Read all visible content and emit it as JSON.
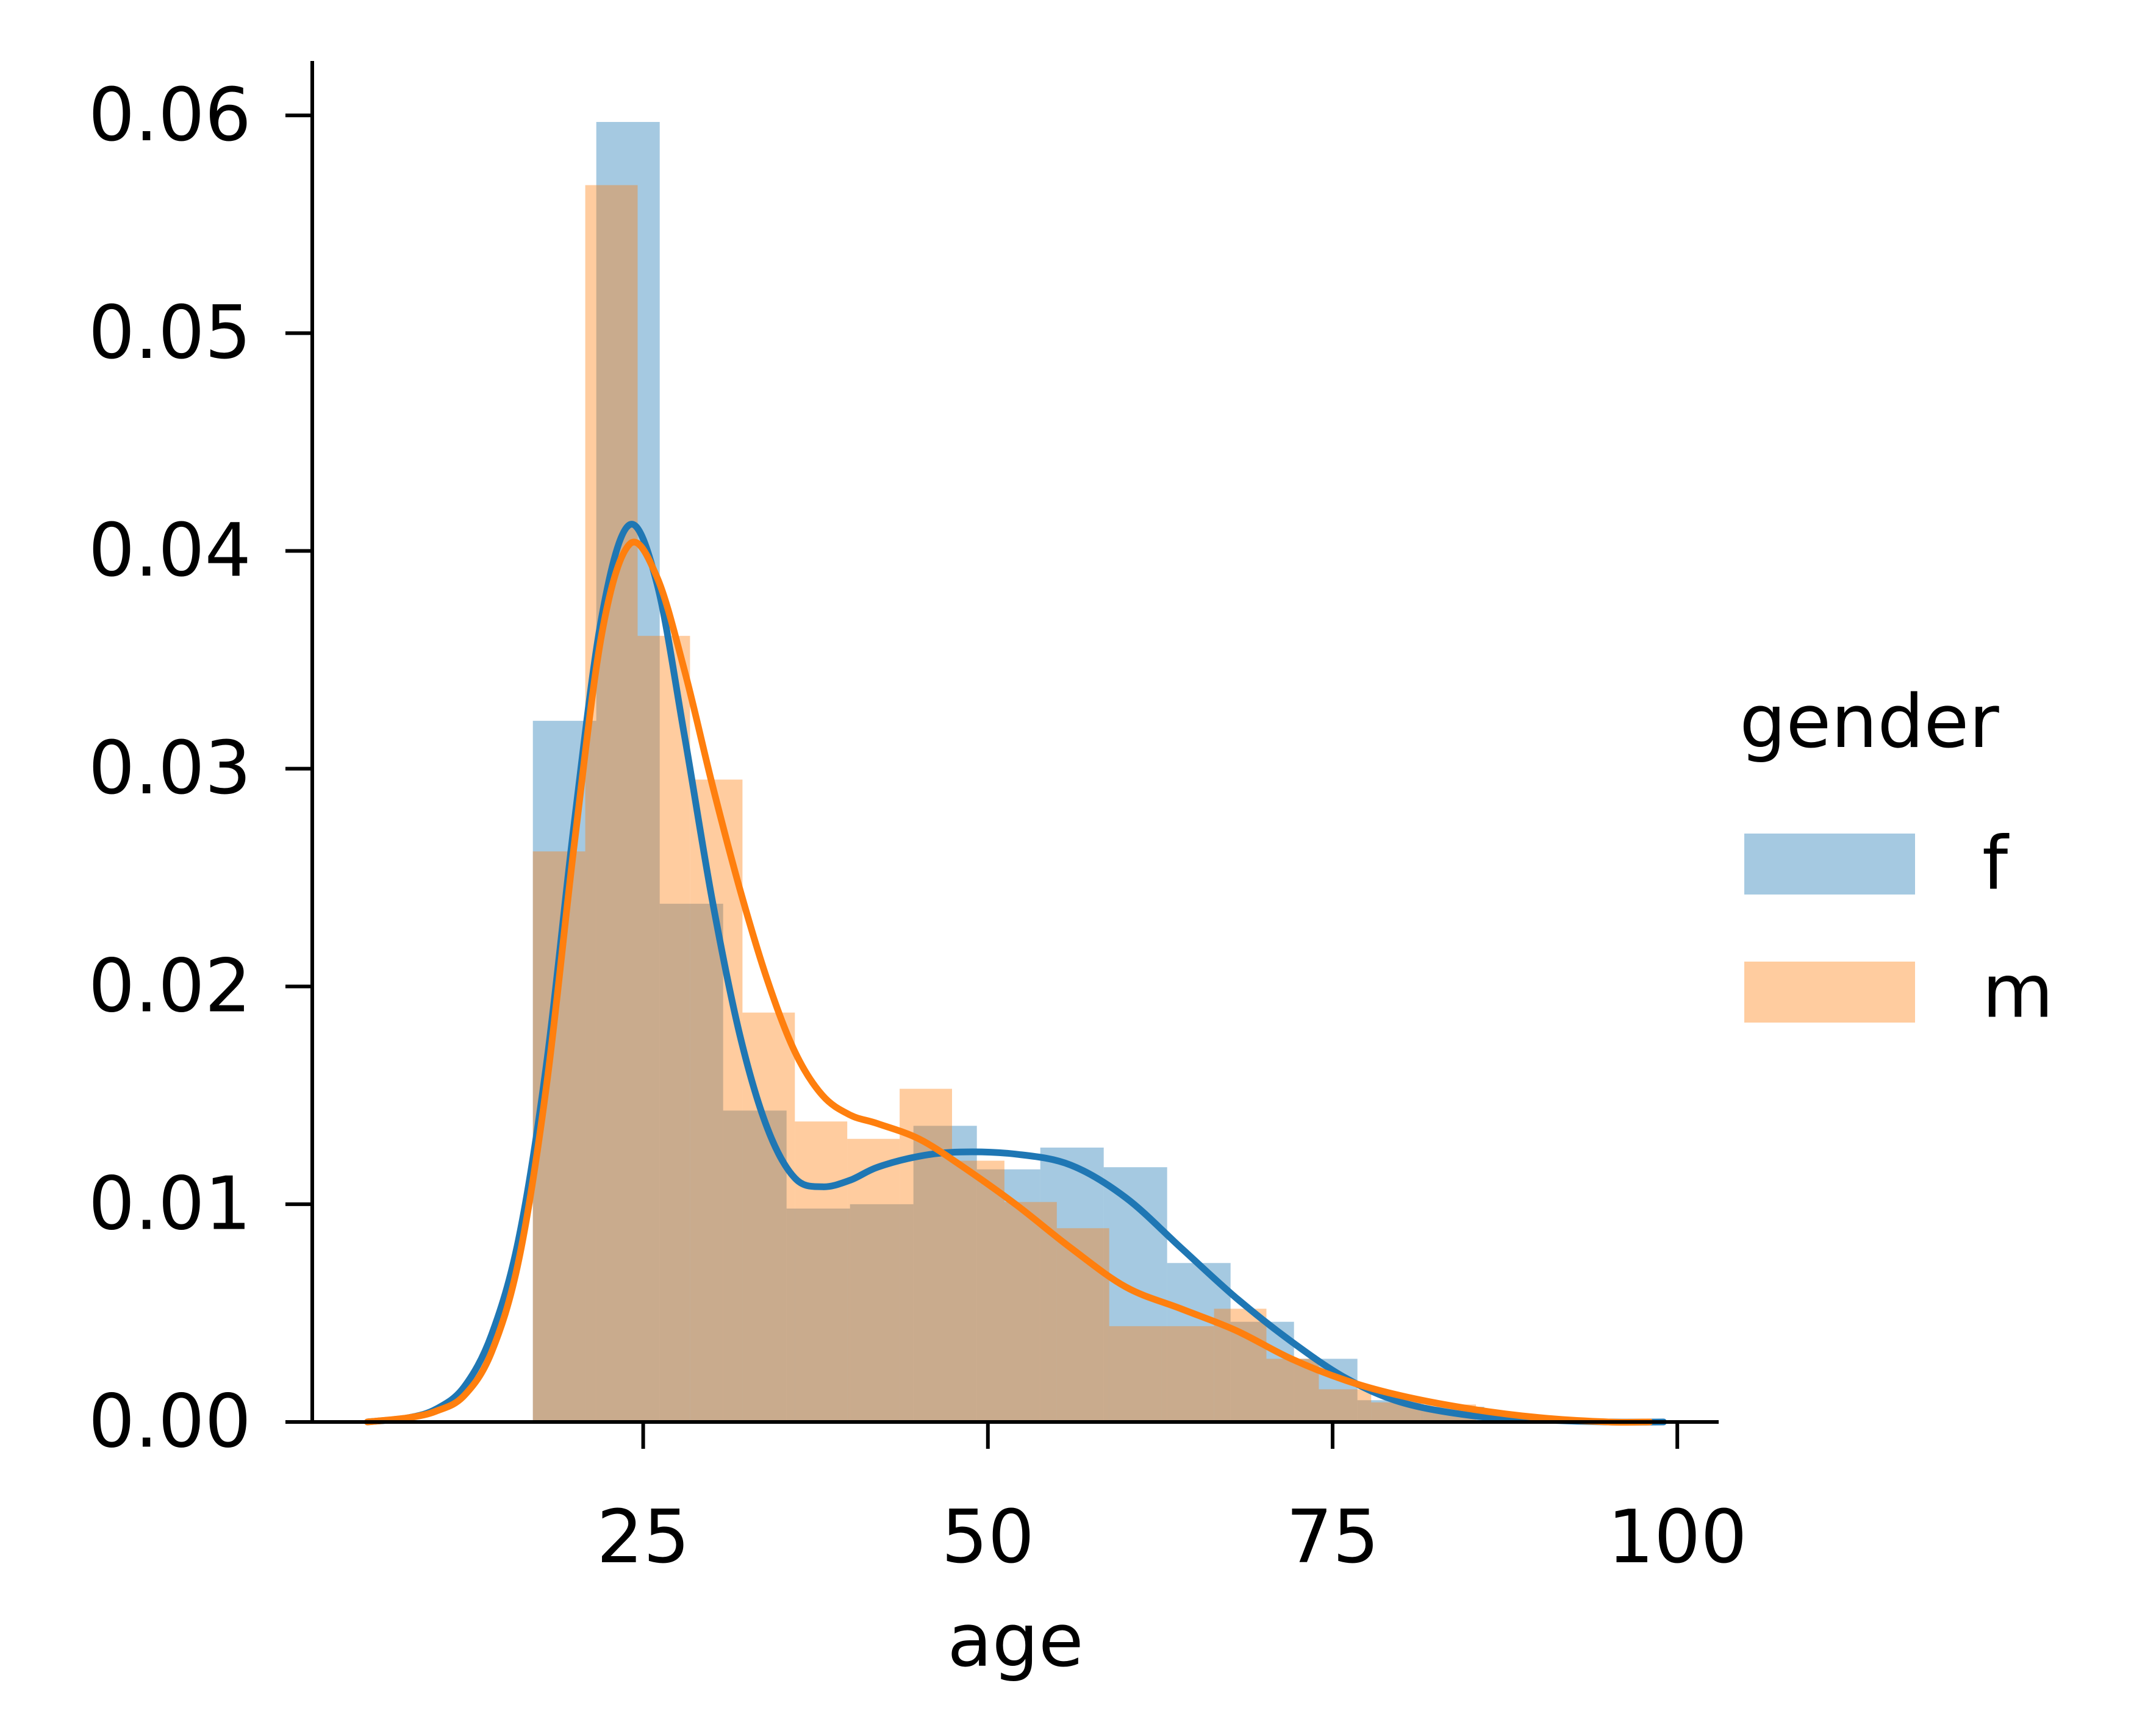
{
  "chart_data": {
    "type": "histogram",
    "xlabel": "age",
    "ylabel": "",
    "xlim": [
      1,
      103
    ],
    "ylim": [
      0,
      0.0625
    ],
    "x_ticks": [
      25,
      50,
      75,
      100
    ],
    "y_ticks": [
      0.0,
      0.01,
      0.02,
      0.03,
      0.04,
      0.05,
      0.06
    ],
    "y_tick_labels": [
      "0.00",
      "0.01",
      "0.02",
      "0.03",
      "0.04",
      "0.05",
      "0.06"
    ],
    "x_tick_labels": [
      "25",
      "50",
      "75",
      "100"
    ],
    "grid": false,
    "legend": {
      "title": "gender",
      "placement": "right",
      "entries": [
        "f",
        "m"
      ]
    },
    "series": [
      {
        "name": "f",
        "color": "#1f77b4",
        "bins": [
          {
            "x0": 17.0,
            "x1": 21.6,
            "density": 0.0322
          },
          {
            "x0": 21.6,
            "x1": 26.2,
            "density": 0.0597
          },
          {
            "x0": 26.2,
            "x1": 30.8,
            "density": 0.0238
          },
          {
            "x0": 30.8,
            "x1": 35.4,
            "density": 0.0143
          },
          {
            "x0": 35.4,
            "x1": 40.0,
            "density": 0.0098
          },
          {
            "x0": 40.0,
            "x1": 44.6,
            "density": 0.01
          },
          {
            "x0": 44.6,
            "x1": 49.2,
            "density": 0.0136
          },
          {
            "x0": 49.2,
            "x1": 53.8,
            "density": 0.0116
          },
          {
            "x0": 53.8,
            "x1": 58.4,
            "density": 0.0126
          },
          {
            "x0": 58.4,
            "x1": 63.0,
            "density": 0.0117
          },
          {
            "x0": 63.0,
            "x1": 67.6,
            "density": 0.0073
          },
          {
            "x0": 67.6,
            "x1": 72.2,
            "density": 0.0046
          },
          {
            "x0": 72.2,
            "x1": 76.8,
            "density": 0.0029
          },
          {
            "x0": 76.8,
            "x1": 81.4,
            "density": 0.001
          },
          {
            "x0": 81.4,
            "x1": 86.0,
            "density": 0.0007
          }
        ],
        "kde": {
          "x": [
            5,
            8,
            10,
            12,
            14,
            16,
            18,
            20,
            22,
            24,
            26,
            28,
            30,
            32,
            34,
            36,
            38,
            40,
            42,
            45,
            48,
            52,
            56,
            60,
            64,
            68,
            72,
            76,
            80,
            85,
            90,
            95,
            99
          ],
          "y": [
            0.0,
            0.0002,
            0.0006,
            0.0016,
            0.004,
            0.0085,
            0.0165,
            0.0275,
            0.037,
            0.0412,
            0.0385,
            0.0315,
            0.024,
            0.0178,
            0.0135,
            0.0112,
            0.0108,
            0.0111,
            0.0117,
            0.0122,
            0.0124,
            0.0123,
            0.0118,
            0.0103,
            0.008,
            0.0057,
            0.0037,
            0.002,
            0.0009,
            0.0003,
            0.0001,
            0.0,
            0.0
          ]
        }
      },
      {
        "name": "m",
        "color": "#ff7f0e",
        "bins": [
          {
            "x0": 17.0,
            "x1": 20.8,
            "density": 0.0262
          },
          {
            "x0": 20.8,
            "x1": 24.6,
            "density": 0.0568
          },
          {
            "x0": 24.6,
            "x1": 28.4,
            "density": 0.0361
          },
          {
            "x0": 28.4,
            "x1": 32.2,
            "density": 0.0295
          },
          {
            "x0": 32.2,
            "x1": 36.0,
            "density": 0.0188
          },
          {
            "x0": 36.0,
            "x1": 39.8,
            "density": 0.0138
          },
          {
            "x0": 39.8,
            "x1": 43.6,
            "density": 0.013
          },
          {
            "x0": 43.6,
            "x1": 47.4,
            "density": 0.0153
          },
          {
            "x0": 47.4,
            "x1": 51.2,
            "density": 0.012
          },
          {
            "x0": 51.2,
            "x1": 55.0,
            "density": 0.0101
          },
          {
            "x0": 55.0,
            "x1": 58.8,
            "density": 0.0089
          },
          {
            "x0": 58.8,
            "x1": 62.6,
            "density": 0.0044
          },
          {
            "x0": 62.6,
            "x1": 66.4,
            "density": 0.0044
          },
          {
            "x0": 66.4,
            "x1": 70.2,
            "density": 0.0052
          },
          {
            "x0": 70.2,
            "x1": 74.0,
            "density": 0.0029
          },
          {
            "x0": 74.0,
            "x1": 77.8,
            "density": 0.0015
          },
          {
            "x0": 77.8,
            "x1": 81.6,
            "density": 0.0009
          },
          {
            "x0": 81.6,
            "x1": 85.4,
            "density": 0.0008
          }
        ],
        "kde": {
          "x": [
            5,
            8,
            10,
            12,
            14,
            16,
            18,
            20,
            22,
            24,
            26,
            28,
            30,
            32,
            34,
            36,
            38,
            40,
            42,
            45,
            48,
            52,
            56,
            60,
            64,
            68,
            72,
            76,
            80,
            85,
            90,
            95,
            98
          ],
          "y": [
            0.0,
            0.0002,
            0.0005,
            0.0012,
            0.0032,
            0.0075,
            0.0155,
            0.0265,
            0.0362,
            0.0403,
            0.0388,
            0.0345,
            0.0293,
            0.0245,
            0.0203,
            0.017,
            0.015,
            0.0141,
            0.0137,
            0.013,
            0.0118,
            0.01,
            0.008,
            0.0062,
            0.0052,
            0.0042,
            0.0029,
            0.0019,
            0.0012,
            0.0006,
            0.0002,
            0.0,
            0.0
          ]
        }
      }
    ]
  }
}
